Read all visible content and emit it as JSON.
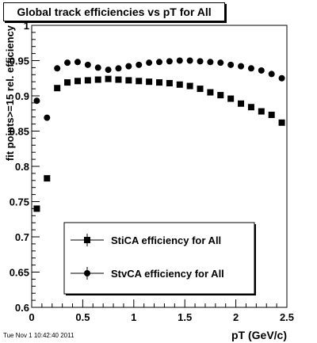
{
  "title": "Global track efficiencies vs pT for All",
  "timestamp": "Tue Nov  1 10:42:40 2011",
  "chart_data": {
    "type": "scatter",
    "xlabel": "pT (GeV/c)",
    "ylabel": "fit points>=15 rel. efficiency",
    "xlim": [
      0,
      2.5
    ],
    "ylim": [
      0.6,
      1.0
    ],
    "x_ticks": [
      "0",
      "0.5",
      "1",
      "1.5",
      "2",
      "2.5"
    ],
    "y_ticks": [
      "0.6",
      "0.65",
      "0.7",
      "0.75",
      "0.8",
      "0.85",
      "0.9",
      "0.95",
      "1"
    ],
    "grid": false,
    "legend_position": "bottom-center",
    "series": [
      {
        "name": "StiCA efficiency  for All",
        "marker": "square",
        "color": "#000000",
        "x": [
          0.05,
          0.15,
          0.25,
          0.35,
          0.45,
          0.55,
          0.65,
          0.75,
          0.85,
          0.95,
          1.05,
          1.15,
          1.25,
          1.35,
          1.45,
          1.55,
          1.65,
          1.75,
          1.85,
          1.95,
          2.05,
          2.15,
          2.25,
          2.35,
          2.45
        ],
        "y": [
          0.74,
          0.783,
          0.911,
          0.919,
          0.921,
          0.922,
          0.923,
          0.924,
          0.923,
          0.922,
          0.921,
          0.92,
          0.919,
          0.918,
          0.916,
          0.914,
          0.91,
          0.905,
          0.901,
          0.896,
          0.889,
          0.884,
          0.878,
          0.873,
          0.862
        ]
      },
      {
        "name": "StvCA efficiency  for All",
        "marker": "circle",
        "color": "#000000",
        "x": [
          0.05,
          0.15,
          0.25,
          0.35,
          0.45,
          0.55,
          0.65,
          0.75,
          0.85,
          0.95,
          1.05,
          1.15,
          1.25,
          1.35,
          1.45,
          1.55,
          1.65,
          1.75,
          1.85,
          1.95,
          2.05,
          2.15,
          2.25,
          2.35,
          2.45
        ],
        "y": [
          0.893,
          0.869,
          0.939,
          0.947,
          0.948,
          0.944,
          0.94,
          0.937,
          0.939,
          0.942,
          0.944,
          0.947,
          0.948,
          0.949,
          0.95,
          0.95,
          0.949,
          0.948,
          0.947,
          0.944,
          0.942,
          0.939,
          0.936,
          0.931,
          0.925
        ]
      }
    ]
  }
}
